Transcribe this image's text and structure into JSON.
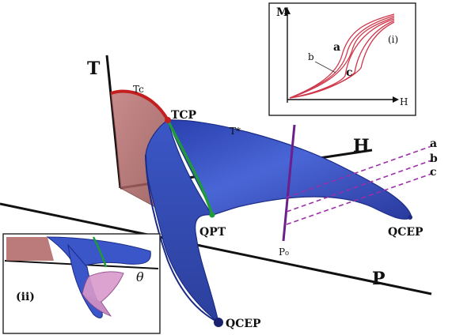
{
  "axes": {
    "t": "T",
    "h": "H",
    "p": "P"
  },
  "labels": {
    "tc": "Tc",
    "tcp": "TCP",
    "tstar": "T*",
    "qpt": "QPT",
    "ps": "P₀",
    "qcep_right": "QCEP",
    "qcep_bottom": "QCEP",
    "line_a": "a",
    "line_b": "b",
    "line_c": "c"
  },
  "inset_i": {
    "tag": "(i)",
    "y_axis": "M",
    "x_axis": "H",
    "curve_a": "a",
    "curve_b": "b",
    "curve_c": "c"
  },
  "inset_ii": {
    "tag": "(ii)",
    "angle": "θ"
  },
  "colors": {
    "wing": "#3a56c8",
    "wing_edge": "#1c2c86",
    "first_order_plane": "#b06464",
    "tc_line": "#c41e1e",
    "qpt_line": "#1f9a3a",
    "dashed": "#9b2fa8",
    "inset_curves": "#d0364a"
  }
}
